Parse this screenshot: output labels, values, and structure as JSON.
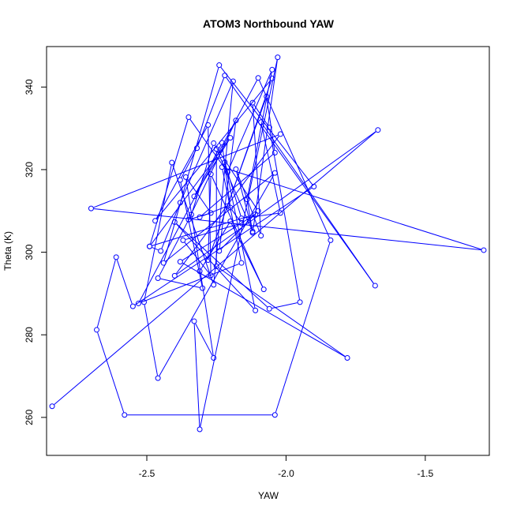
{
  "chart_data": {
    "type": "line",
    "title": "ATOM3 Northbound YAW",
    "xlabel": "YAW",
    "ylabel": "Theta (K)",
    "xlim": [
      -2.86,
      -1.27
    ],
    "ylim": [
      250.8,
      349.8
    ],
    "xticks": [
      -2.5,
      -2.0,
      -1.5
    ],
    "xtick_labels": [
      "-2.5",
      "-2.0",
      "-1.5"
    ],
    "yticks": [
      260,
      280,
      300,
      320,
      340
    ],
    "ytick_labels": [
      "260",
      "280",
      "300",
      "320",
      "340"
    ],
    "grid": false,
    "markers": "open-circle",
    "line_color": "#0000ff",
    "series": [
      {
        "x": [
          -2.84,
          -1.67,
          -2.4,
          -2.02,
          -2.7,
          -1.29,
          -2.23,
          -2.16,
          -2.53,
          -2.1,
          -1.84,
          -2.04,
          -2.58,
          -2.68,
          -2.61,
          -2.55,
          -1.9,
          -2.24,
          -2.44,
          -2.04,
          -2.46,
          -2.51,
          -2.41,
          -2.26,
          -2.19,
          -2.38,
          -2.45,
          -2.49,
          -2.35,
          -2.21,
          -2.05,
          -2.14,
          -2.12,
          -2.03,
          -2.31,
          -2.33,
          -2.26,
          -2.36,
          -2.27,
          -2.35,
          -2.18,
          -2.24,
          -2.1,
          -2.26,
          -2.34,
          -2.46,
          -2.3,
          -2.38,
          -2.32,
          -2.22,
          -1.68,
          -2.09,
          -2.02,
          -2.16,
          -2.22,
          -2.11,
          -2.4,
          -2.06,
          -1.95,
          -2.06,
          -2.12,
          -2.09,
          -2.18,
          -2.12,
          -2.25,
          -2.25,
          -1.78,
          -2.38,
          -2.11,
          -2.49,
          -2.2,
          -2.33,
          -2.23,
          -2.2,
          -2.16,
          -2.37,
          -2.27,
          -2.28,
          -2.47,
          -2.05,
          -2.21,
          -2.31,
          -2.04,
          -2.07,
          -2.28,
          -2.27,
          -2.08,
          -2.2,
          -2.31
        ],
        "y": [
          262.7,
          329.6,
          294.3,
          328.6,
          310.6,
          300.5,
          320.6,
          297.4,
          287.6,
          342.2,
          302.9,
          260.6,
          260.6,
          281.2,
          298.8,
          286.9,
          315.9,
          345.3,
          297.4,
          319.2,
          269.5,
          287.9,
          321.7,
          292.1,
          341.4,
          312.0,
          300.3,
          301.4,
          332.7,
          319.4,
          344.2,
          312.8,
          304.7,
          347.2,
          257.1,
          283.3,
          274.4,
          318.2,
          309.5,
          307.9,
          331.9,
          300.3,
          310.0,
          326.4,
          309.1,
          293.7,
          291.3,
          317.5,
          325.2,
          342.8,
          291.9,
          331.5,
          309.5,
          308.2,
          321.8,
          285.9,
          307.3,
          286.3,
          287.9,
          330.2,
          336.2,
          304.0,
          320.1,
          305.0,
          325.0,
          296.6,
          274.4,
          297.7,
          309.2,
          301.4,
          327.7,
          313.5,
          326.5,
          310.8,
          307.0,
          302.9,
          294.4,
          330.8,
          307.6,
          342.1,
          311.2,
          308.5,
          324.1,
          337.7,
          298.1,
          318.9,
          291.0,
          307.5,
          295.4
        ]
      }
    ]
  }
}
